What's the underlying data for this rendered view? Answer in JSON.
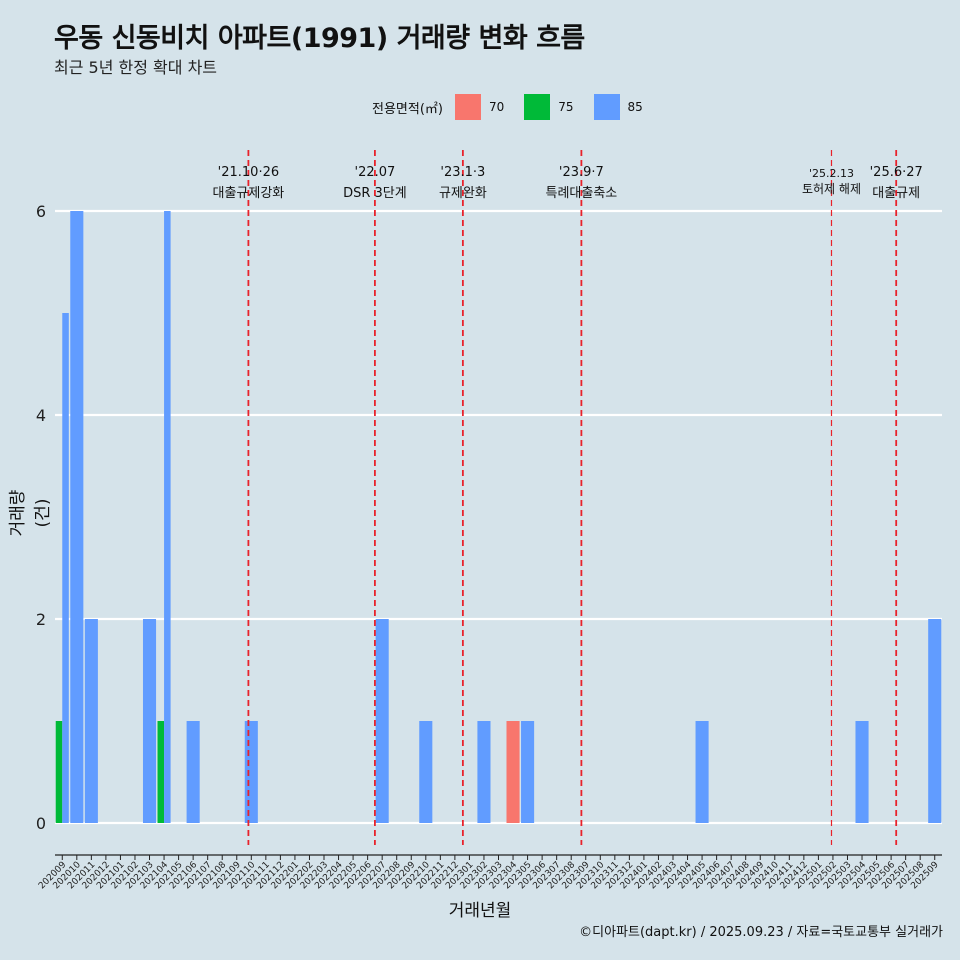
{
  "title": "우동 신동비치 아파트(1991) 거래량 변화 흐름",
  "subtitle": "최근 5년 한정 확대 차트",
  "legend": {
    "title": "전용면적(㎡)",
    "items": [
      {
        "label": "70",
        "color": "#f8766d"
      },
      {
        "label": "75",
        "color": "#00ba38"
      },
      {
        "label": "85",
        "color": "#619cff"
      }
    ]
  },
  "caption": "©디아파트(dapt.kr) / 2025.09.23 / 자료=국토교통부 실거래가",
  "chart_data": {
    "type": "bar",
    "title": "우동 신동비치 아파트(1991) 거래량 변화 흐름",
    "xlabel": "거래년월",
    "ylabel": "거래량(건)",
    "ylim": [
      0,
      6
    ],
    "yticks": [
      0,
      2,
      4,
      6
    ],
    "categories": [
      "202009",
      "202010",
      "202011",
      "202012",
      "202101",
      "202102",
      "202103",
      "202104",
      "202105",
      "202106",
      "202107",
      "202108",
      "202109",
      "202110",
      "202111",
      "202112",
      "202201",
      "202202",
      "202203",
      "202204",
      "202205",
      "202206",
      "202207",
      "202208",
      "202209",
      "202210",
      "202211",
      "202212",
      "202301",
      "202302",
      "202303",
      "202304",
      "202305",
      "202306",
      "202307",
      "202308",
      "202309",
      "202310",
      "202311",
      "202312",
      "202401",
      "202402",
      "202403",
      "202404",
      "202405",
      "202406",
      "202407",
      "202408",
      "202409",
      "202410",
      "202411",
      "202412",
      "202501",
      "202502",
      "202503",
      "202504",
      "202505",
      "202506",
      "202507",
      "202508",
      "202509"
    ],
    "bars": [
      {
        "month": "202009",
        "area": "75",
        "value": 1
      },
      {
        "month": "202009",
        "area": "85",
        "value": 5
      },
      {
        "month": "202010",
        "area": "85",
        "value": 6
      },
      {
        "month": "202011",
        "area": "85",
        "value": 2
      },
      {
        "month": "202103",
        "area": "85",
        "value": 2
      },
      {
        "month": "202104",
        "area": "75",
        "value": 1
      },
      {
        "month": "202104",
        "area": "85",
        "value": 6
      },
      {
        "month": "202106",
        "area": "85",
        "value": 1
      },
      {
        "month": "202110",
        "area": "85",
        "value": 1
      },
      {
        "month": "202207",
        "area": "85",
        "value": 2
      },
      {
        "month": "202210",
        "area": "85",
        "value": 1
      },
      {
        "month": "202302",
        "area": "85",
        "value": 1
      },
      {
        "month": "202304",
        "area": "70",
        "value": 1
      },
      {
        "month": "202305",
        "area": "85",
        "value": 1
      },
      {
        "month": "202405",
        "area": "85",
        "value": 1
      },
      {
        "month": "202504",
        "area": "85",
        "value": 1
      },
      {
        "month": "202509",
        "area": "85",
        "value": 2
      }
    ],
    "events": [
      {
        "date": "'21.10·26",
        "label": "대출규제강화",
        "month": "202110",
        "offset": 0.3,
        "minor": false
      },
      {
        "date": "'22.07",
        "label": "DSR 3단계",
        "month": "202207",
        "offset": 0.0,
        "minor": false
      },
      {
        "date": "'23.1·3",
        "label": "규제완화",
        "month": "202301",
        "offset": 0.05,
        "minor": false
      },
      {
        "date": "'23.9·7",
        "label": "특례대출축소",
        "month": "202309",
        "offset": 0.2,
        "minor": false
      },
      {
        "date": "'25.2.13",
        "label": "토허제 해제",
        "month": "202502",
        "offset": 0.4,
        "minor": true
      },
      {
        "date": "'25.6·27",
        "label": "대출규제",
        "month": "202506",
        "offset": 0.85,
        "minor": false
      }
    ]
  }
}
